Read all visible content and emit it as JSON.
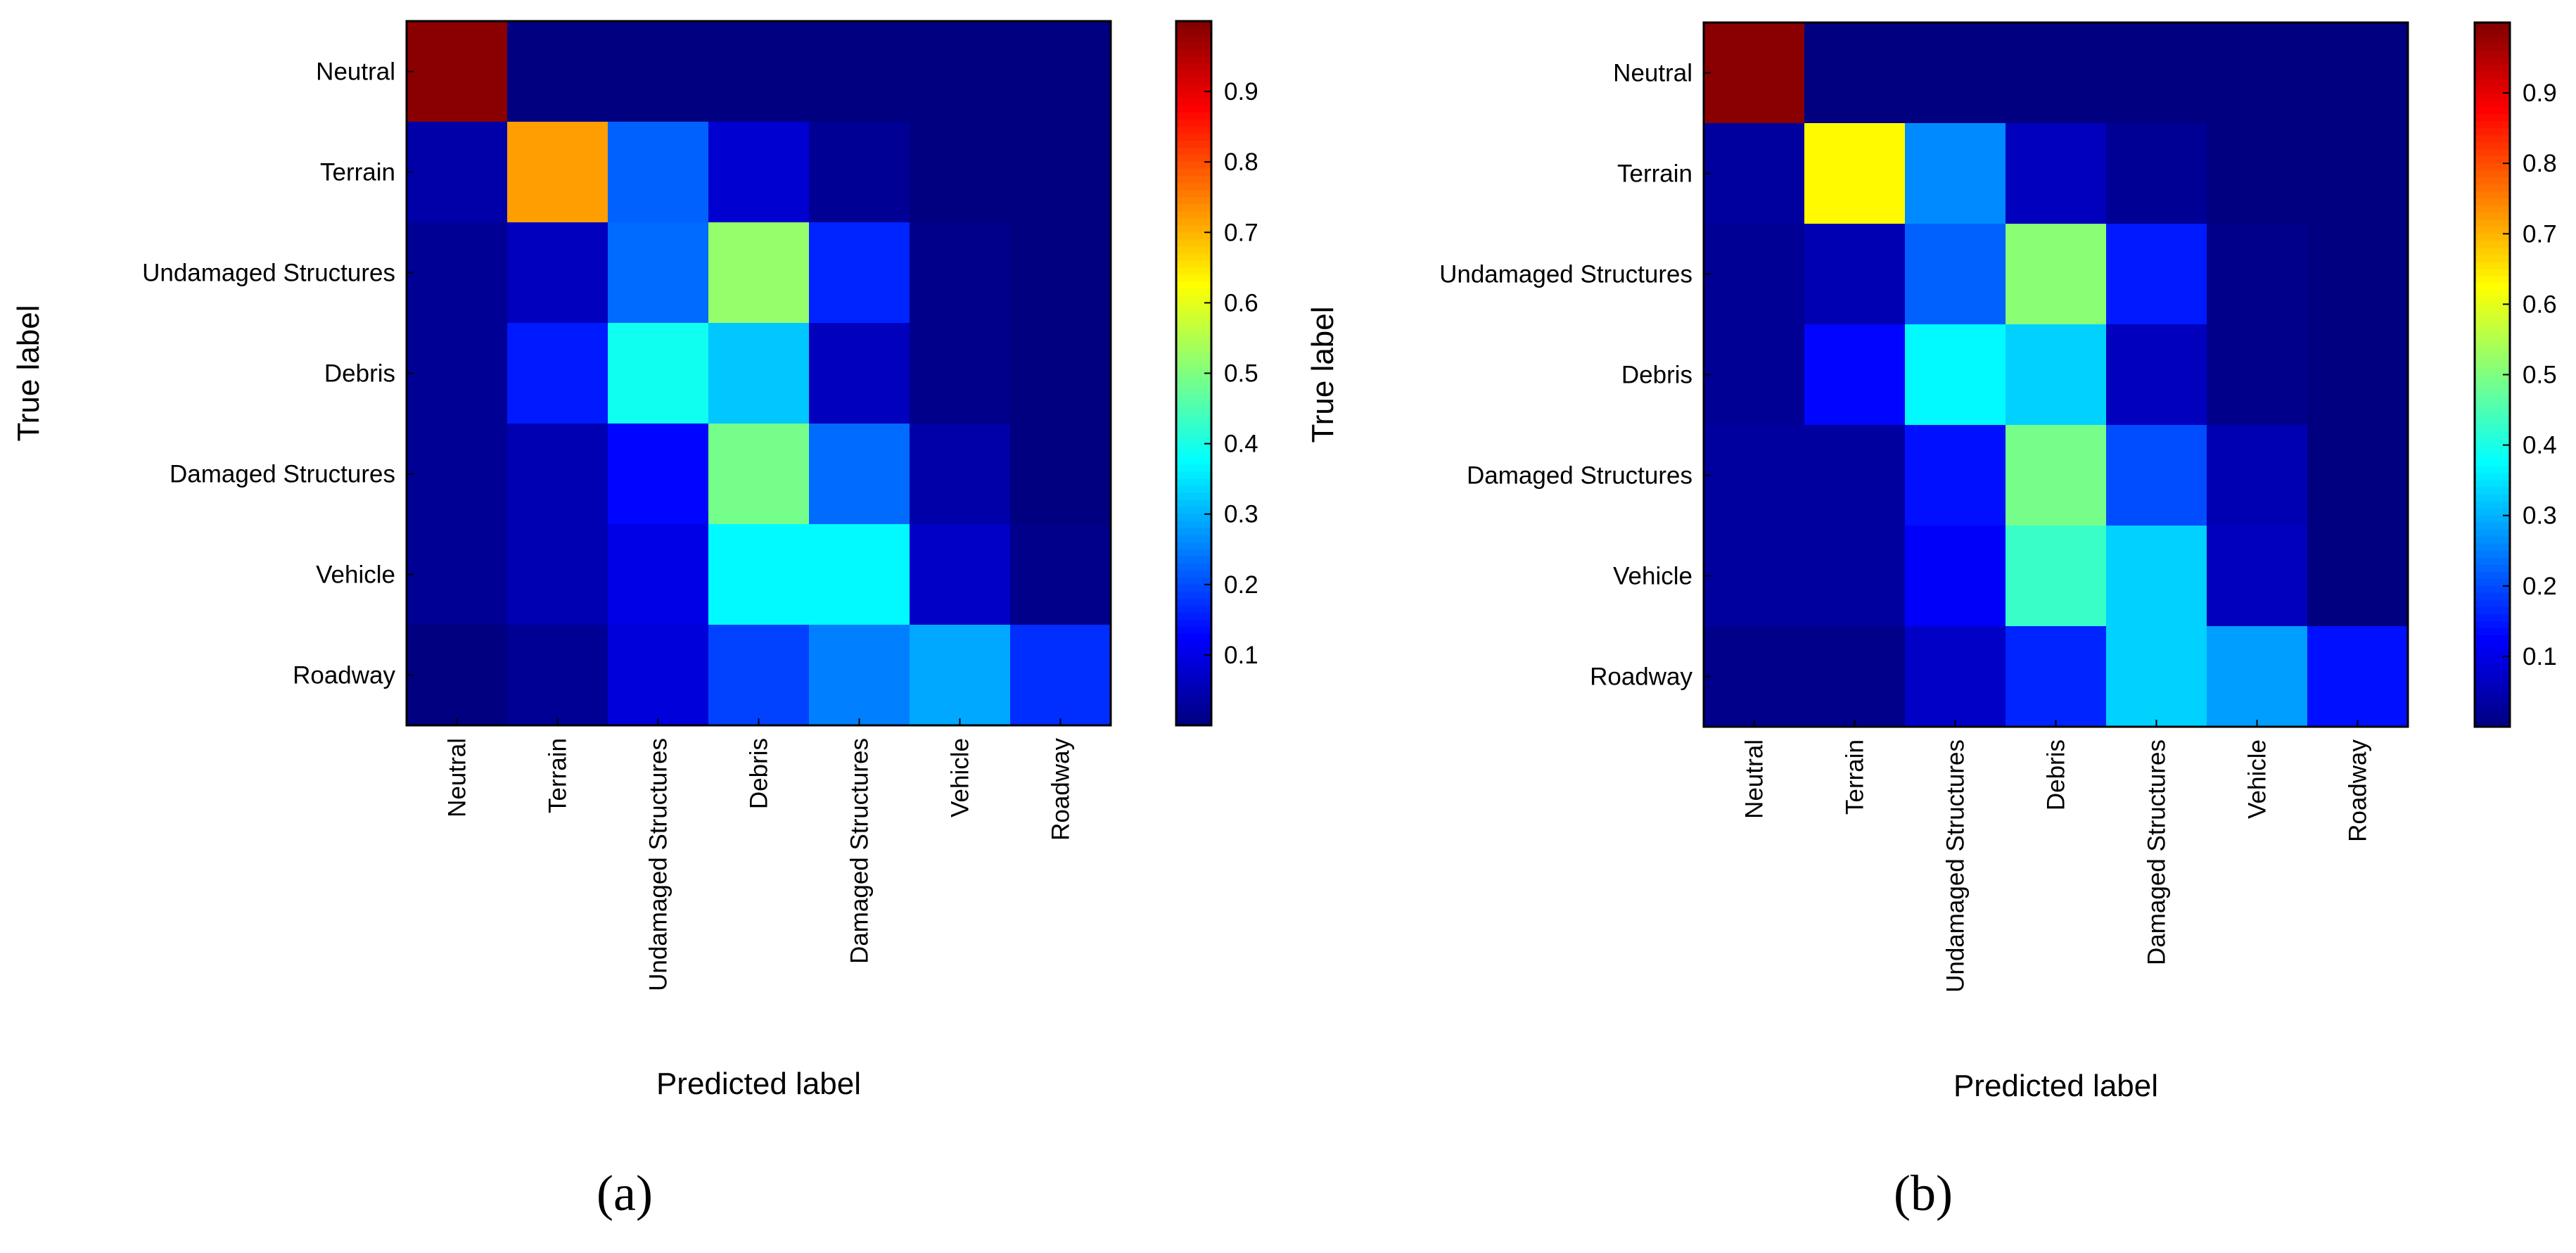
{
  "chart_data": [
    {
      "type": "heatmap",
      "panel_label": "a",
      "xlabel": "Predicted label",
      "ylabel": "True label",
      "categories": [
        "Neutral",
        "Terrain",
        "Undamaged Structures",
        "Debris",
        "Damaged Structures",
        "Vehicle",
        "Roadway"
      ],
      "colorbar": {
        "ticks": [
          "0.1",
          "0.2",
          "0.3",
          "0.4",
          "0.5",
          "0.6",
          "0.7",
          "0.8",
          "0.9"
        ],
        "range": [
          0.0,
          1.0
        ],
        "colormap": "jet"
      },
      "matrix": [
        [
          0.99,
          0.0,
          0.0,
          0.0,
          0.0,
          0.0,
          0.0
        ],
        [
          0.04,
          0.72,
          0.22,
          0.08,
          0.02,
          0.0,
          0.0
        ],
        [
          0.02,
          0.06,
          0.23,
          0.52,
          0.16,
          0.01,
          0.0
        ],
        [
          0.02,
          0.15,
          0.39,
          0.32,
          0.06,
          0.01,
          0.0
        ],
        [
          0.02,
          0.05,
          0.13,
          0.49,
          0.23,
          0.04,
          0.0
        ],
        [
          0.02,
          0.05,
          0.1,
          0.37,
          0.37,
          0.07,
          0.01
        ],
        [
          0.0,
          0.02,
          0.09,
          0.19,
          0.25,
          0.29,
          0.17
        ]
      ]
    },
    {
      "type": "heatmap",
      "panel_label": "b",
      "xlabel": "Predicted label",
      "ylabel": "True label",
      "categories": [
        "Neutral",
        "Terrain",
        "Undamaged Structures",
        "Debris",
        "Damaged Structures",
        "Vehicle",
        "Roadway"
      ],
      "colorbar": {
        "ticks": [
          "0.1",
          "0.2",
          "0.3",
          "0.4",
          "0.5",
          "0.6",
          "0.7",
          "0.8",
          "0.9"
        ],
        "range": [
          0.0,
          1.0
        ],
        "colormap": "jet"
      },
      "matrix": [
        [
          0.99,
          0.0,
          0.0,
          0.0,
          0.0,
          0.0,
          0.0
        ],
        [
          0.03,
          0.63,
          0.26,
          0.06,
          0.02,
          0.0,
          0.0
        ],
        [
          0.02,
          0.05,
          0.22,
          0.51,
          0.15,
          0.01,
          0.0
        ],
        [
          0.02,
          0.13,
          0.37,
          0.33,
          0.06,
          0.01,
          0.0
        ],
        [
          0.03,
          0.03,
          0.14,
          0.49,
          0.2,
          0.05,
          0.0
        ],
        [
          0.03,
          0.03,
          0.12,
          0.43,
          0.33,
          0.06,
          0.0
        ],
        [
          0.01,
          0.01,
          0.07,
          0.16,
          0.33,
          0.28,
          0.14
        ]
      ]
    }
  ],
  "captions": [
    "(a)",
    "(b)"
  ]
}
